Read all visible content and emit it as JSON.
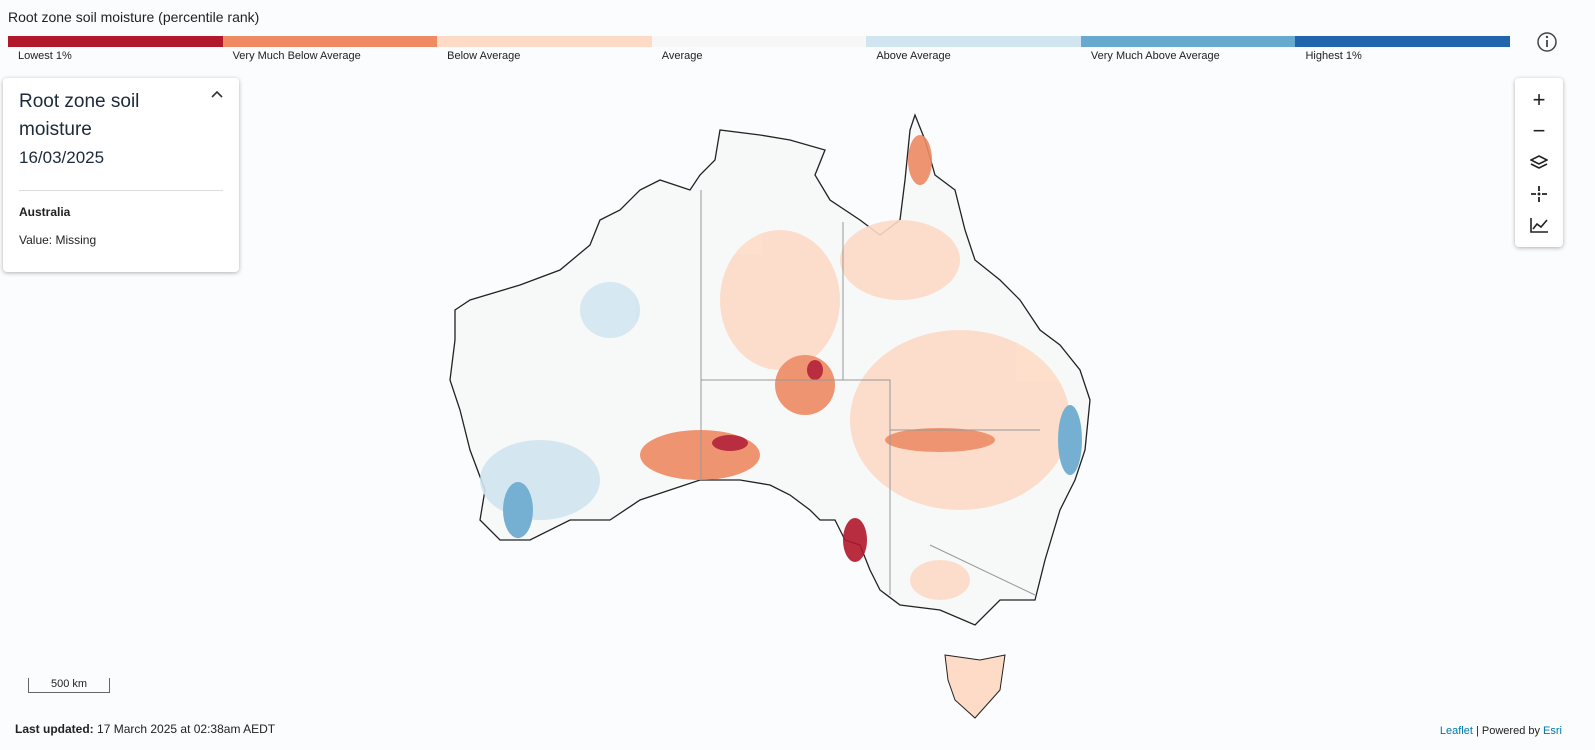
{
  "legend": {
    "title": "Root zone soil moisture (percentile rank)",
    "items": [
      {
        "label": "Lowest 1%",
        "color": "#b2182b"
      },
      {
        "label": "Very Much Below Average",
        "color": "#ef8a62"
      },
      {
        "label": "Below Average",
        "color": "#fddbc7"
      },
      {
        "label": "Average",
        "color": "#f7f7f7"
      },
      {
        "label": "Above Average",
        "color": "#d1e5f0"
      },
      {
        "label": "Very Much Above Average",
        "color": "#67a9cf"
      },
      {
        "label": "Highest 1%",
        "color": "#2166ac"
      }
    ]
  },
  "info_panel": {
    "title": "Root zone soil moisture",
    "date": "16/03/2025",
    "region": "Australia",
    "value": "Value: Missing"
  },
  "controls": {
    "zoom_in": "+",
    "zoom_out": "−"
  },
  "scale": "500 km",
  "footer": {
    "label": "Last updated:",
    "text": "17 March 2025 at 02:38am AEDT"
  },
  "attribution": {
    "leaflet": "Leaflet",
    "separator": "|",
    "powered_by": "Powered by",
    "esri": "Esri"
  }
}
